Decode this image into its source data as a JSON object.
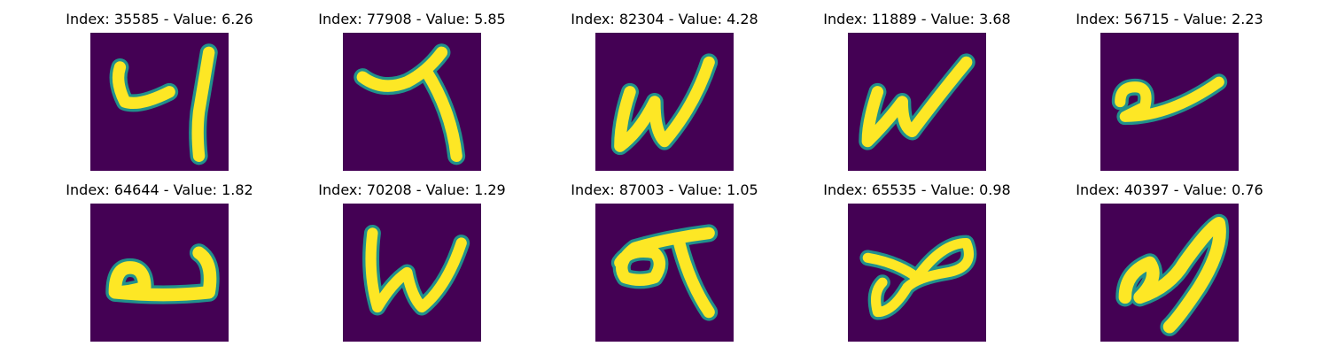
{
  "colors": {
    "background": "#440154",
    "stroke_core": "#fde725",
    "stroke_edge": "#21918c"
  },
  "grid": [
    {
      "title": "Index: 35585 - Value: 6.26",
      "index": 35585,
      "value": 6.26
    },
    {
      "title": "Index: 77908 - Value: 5.85",
      "index": 77908,
      "value": 5.85
    },
    {
      "title": "Index: 82304 - Value: 4.28",
      "index": 82304,
      "value": 4.28
    },
    {
      "title": "Index: 11889 - Value: 3.68",
      "index": 11889,
      "value": 3.68
    },
    {
      "title": "Index: 56715 - Value: 2.23",
      "index": 56715,
      "value": 2.23
    },
    {
      "title": "Index: 64644 - Value: 1.82",
      "index": 64644,
      "value": 1.82
    },
    {
      "title": "Index: 70208 - Value: 1.29",
      "index": 70208,
      "value": 1.29
    },
    {
      "title": "Index: 87003 - Value: 1.05",
      "index": 87003,
      "value": 1.05
    },
    {
      "title": "Index: 65535 - Value: 0.98",
      "index": 65535,
      "value": 0.98
    },
    {
      "title": "Index: 40397 - Value: 0.76",
      "index": 40397,
      "value": 0.76
    }
  ]
}
